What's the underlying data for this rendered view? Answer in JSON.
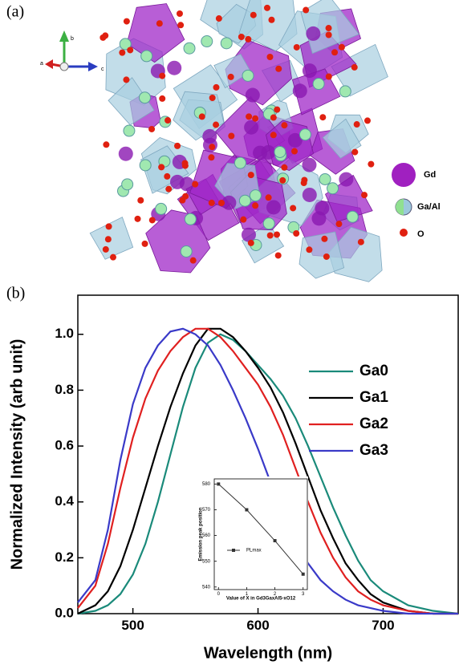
{
  "panel_a": {
    "label": "(a)",
    "axes": [
      "a",
      "b",
      "c"
    ],
    "legend": [
      "Gd",
      "Ga/Al",
      "O"
    ]
  },
  "chart_data": [
    {
      "type": "line",
      "panel_label": "(b)",
      "xlabel": "Wavelength (nm)",
      "ylabel": "Normalized Intensity (arb unit)",
      "x": [
        456,
        470,
        480,
        490,
        500,
        510,
        520,
        530,
        540,
        550,
        560,
        570,
        580,
        590,
        600,
        610,
        620,
        630,
        640,
        650,
        660,
        670,
        680,
        690,
        700,
        720,
        740,
        760
      ],
      "xlim": [
        456,
        760
      ],
      "xticks": [
        500,
        600,
        700
      ],
      "ylim": [
        0,
        1.14
      ],
      "yticks": [
        {
          "value": 0,
          "label": "0.0"
        },
        0.2,
        0.4,
        0.6,
        0.8,
        {
          "value": 1,
          "label": "1.0"
        }
      ],
      "legend": "upper right",
      "series": [
        {
          "name": "Ga0",
          "color": "#1a8a7a",
          "values": [
            0,
            0.01,
            0.03,
            0.07,
            0.14,
            0.25,
            0.4,
            0.57,
            0.74,
            0.88,
            0.97,
            1.0,
            0.98,
            0.94,
            0.89,
            0.84,
            0.78,
            0.7,
            0.6,
            0.49,
            0.38,
            0.28,
            0.19,
            0.12,
            0.08,
            0.03,
            0.01,
            0
          ]
        },
        {
          "name": "Ga1",
          "color": "#000000",
          "values": [
            0,
            0.03,
            0.08,
            0.17,
            0.3,
            0.45,
            0.6,
            0.74,
            0.86,
            0.96,
            1.02,
            1.02,
            0.99,
            0.94,
            0.88,
            0.81,
            0.72,
            0.61,
            0.49,
            0.37,
            0.27,
            0.18,
            0.12,
            0.07,
            0.04,
            0.01,
            0,
            0
          ]
        },
        {
          "name": "Ga2",
          "color": "#e02020",
          "values": [
            0.02,
            0.1,
            0.25,
            0.45,
            0.63,
            0.77,
            0.87,
            0.94,
            0.99,
            1.02,
            1.02,
            0.99,
            0.94,
            0.88,
            0.82,
            0.74,
            0.64,
            0.52,
            0.4,
            0.29,
            0.2,
            0.13,
            0.08,
            0.05,
            0.03,
            0.01,
            0,
            0
          ]
        },
        {
          "name": "Ga3",
          "color": "#3a3ac8",
          "values": [
            0.04,
            0.12,
            0.3,
            0.55,
            0.75,
            0.88,
            0.96,
            1.01,
            1.02,
            1.0,
            0.96,
            0.89,
            0.8,
            0.7,
            0.59,
            0.47,
            0.36,
            0.26,
            0.18,
            0.12,
            0.08,
            0.05,
            0.03,
            0.02,
            0.01,
            0,
            0,
            0
          ]
        }
      ]
    },
    {
      "type": "line",
      "xlabel": "Value of X in Gd3GaxAl5-xO12",
      "ylabel": "Emission peak position",
      "x": [
        0,
        1,
        2,
        3
      ],
      "xlim": [
        -0.15,
        3.15
      ],
      "xticks": [
        0,
        1,
        2,
        3
      ],
      "ylim": [
        539,
        582
      ],
      "yticks": [
        540,
        550,
        560,
        570,
        580
      ],
      "legend": "center left",
      "series": [
        {
          "name": "PLmax",
          "color": "#333333",
          "values": [
            580,
            570,
            558,
            545
          ]
        }
      ]
    }
  ]
}
